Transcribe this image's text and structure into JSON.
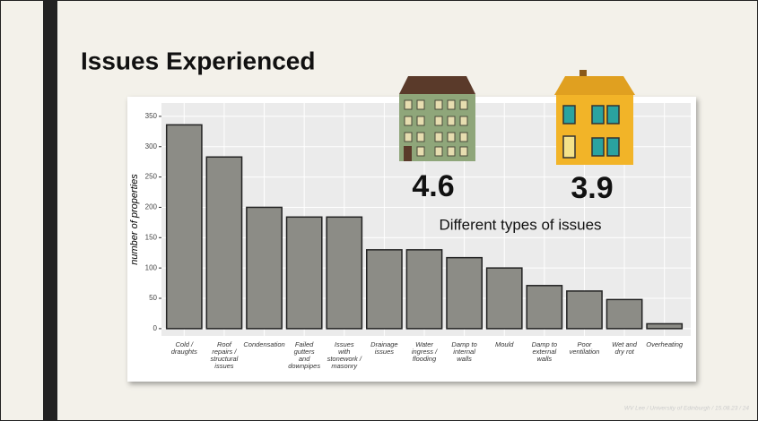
{
  "slide": {
    "title": "Issues Experienced",
    "footer": "WV Lee / University of Edinburgh / 15.08.23 / 24"
  },
  "annotations": {
    "left_value": "4.6",
    "right_value": "3.9",
    "caption": "Different types of issues"
  },
  "chart_data": {
    "type": "bar",
    "y_label": "number of properties",
    "categories": [
      "Cold /\ndraughts",
      "Roof\nrepairs /\nstructural\nissues",
      "Condensation",
      "Failed\ngutters\nand\ndownpipes",
      "Issues\nwith\nstonework /\nmasonry",
      "Drainage\nissues",
      "Water\ningress /\nflooding",
      "Damp to\ninternal\nwalls",
      "Mould",
      "Damp to\nexternal\nwalls",
      "Poor\nventilation",
      "Wet and\ndry rot",
      "Overheating"
    ],
    "values": [
      336,
      283,
      200,
      184,
      184,
      130,
      130,
      117,
      100,
      71,
      62,
      48,
      8
    ],
    "color": "#8c8c86",
    "ylim": [
      -12,
      372
    ],
    "yticks": [
      0,
      50,
      100,
      150,
      200,
      250,
      300,
      350
    ],
    "grid": true
  }
}
